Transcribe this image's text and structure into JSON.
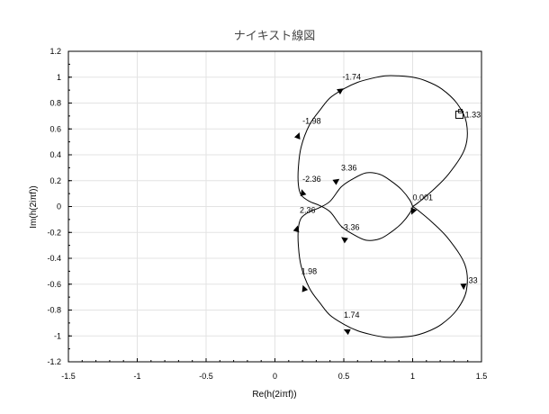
{
  "chart_data": {
    "type": "line",
    "title": "ナイキスト線図",
    "xlabel": "Re(h(2iπf))",
    "ylabel": "Im(h(2iπf))",
    "xlim": [
      -1.5,
      1.5
    ],
    "ylim": [
      -1.2,
      1.2
    ],
    "grid": true,
    "x_ticks": [
      "-1.5",
      "-1",
      "-0.5",
      "0",
      "0.5",
      "1",
      "1.5"
    ],
    "y_ticks": [
      "-1.2",
      "-1",
      "-0.8",
      "-0.6",
      "-0.4",
      "-0.2",
      "0",
      "0.2",
      "0.4",
      "0.6",
      "0.8",
      "1",
      "1.2"
    ],
    "series": [
      {
        "x": [
          1.0,
          1.04,
          1.14,
          1.26,
          1.38,
          1.39,
          1.32,
          1.21,
          1.1,
          1.0,
          0.9,
          0.8,
          0.7,
          0.6,
          0.5,
          0.4,
          0.33,
          0.25,
          0.19,
          0.17,
          0.17,
          0.19,
          0.25,
          0.32,
          0.4,
          0.48,
          0.56,
          0.66,
          0.76,
          0.84,
          0.92,
          0.98,
          1.0
        ],
        "y": [
          0.0,
          -0.03,
          -0.12,
          -0.25,
          -0.45,
          -0.65,
          -0.8,
          -0.91,
          -0.97,
          -1.0,
          -1.01,
          -1.01,
          -0.99,
          -0.96,
          -0.91,
          -0.84,
          -0.75,
          -0.63,
          -0.46,
          -0.3,
          -0.17,
          -0.09,
          -0.04,
          -0.01,
          0.04,
          0.15,
          0.21,
          0.26,
          0.25,
          0.2,
          0.13,
          0.05,
          0.0
        ]
      },
      {
        "x": [
          1.0,
          0.98,
          0.92,
          0.84,
          0.76,
          0.66,
          0.56,
          0.48,
          0.4,
          0.32,
          0.25,
          0.19,
          0.17,
          0.17,
          0.19,
          0.25,
          0.33,
          0.4,
          0.5,
          0.6,
          0.7,
          0.8,
          0.9,
          1.0,
          1.1,
          1.21,
          1.32,
          1.39,
          1.38,
          1.26,
          1.14,
          1.04,
          1.0
        ],
        "y": [
          0.0,
          -0.05,
          -0.13,
          -0.2,
          -0.25,
          -0.26,
          -0.21,
          -0.15,
          -0.04,
          0.01,
          0.04,
          0.09,
          0.17,
          0.3,
          0.46,
          0.63,
          0.75,
          0.84,
          0.91,
          0.96,
          0.99,
          1.01,
          1.01,
          1.0,
          0.97,
          0.91,
          0.8,
          0.65,
          0.45,
          0.25,
          0.12,
          0.03,
          0.0
        ]
      }
    ],
    "arrows": [
      {
        "x": 1.0,
        "y": -0.04,
        "dir": 1
      },
      {
        "x": 1.37,
        "y": -0.62,
        "dir": -1
      },
      {
        "x": 0.52,
        "y": -0.96,
        "dir": 1
      },
      {
        "x": 0.21,
        "y": -0.63,
        "dir": 1
      },
      {
        "x": 0.16,
        "y": -0.17,
        "dir": -1
      },
      {
        "x": 0.5,
        "y": -0.25,
        "dir": -1
      },
      {
        "x": 1.0,
        "y": -0.04,
        "dir": 1
      },
      {
        "x": 0.2,
        "y": 0.11,
        "dir": 1
      },
      {
        "x": 0.17,
        "y": 0.55,
        "dir": 1
      },
      {
        "x": 0.48,
        "y": 0.9,
        "dir": -1
      },
      {
        "x": 0.45,
        "y": 0.2,
        "dir": 1
      }
    ],
    "annotations": [
      {
        "text": "-1.74",
        "x": 0.49,
        "y": 0.98
      },
      {
        "text": "-1.98",
        "x": 0.2,
        "y": 0.64
      },
      {
        "text": "-2.36",
        "x": 0.2,
        "y": 0.19
      },
      {
        "text": "3.36",
        "x": 0.48,
        "y": 0.28
      },
      {
        "text": "0.001",
        "x": 1.0,
        "y": 0.05
      },
      {
        "text": "1.33",
        "x": 1.38,
        "y": 0.69
      },
      {
        "text": "2.36",
        "x": 0.18,
        "y": -0.05
      },
      {
        "text": "-3.36",
        "x": 0.48,
        "y": -0.18
      },
      {
        "text": "1.98",
        "x": 0.19,
        "y": -0.52
      },
      {
        "text": ".33",
        "x": 1.39,
        "y": -0.59
      },
      {
        "text": "1.74",
        "x": 0.5,
        "y": -0.86
      }
    ],
    "markers": [
      {
        "x": 1.34,
        "y": 0.71
      }
    ]
  }
}
